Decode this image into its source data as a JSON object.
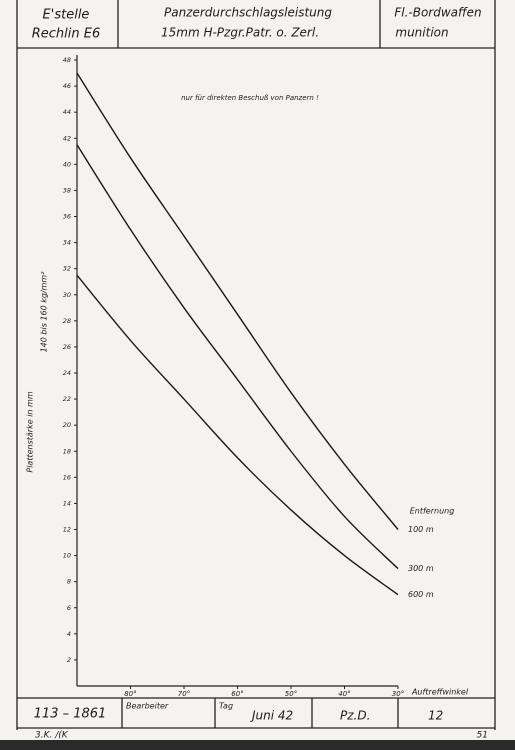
{
  "header": {
    "left": [
      "E'stelle",
      "Rechlin E6"
    ],
    "center": [
      "Panzerdurchschlagsleistung",
      "15mm H-Pzgr.Patr. o. Zerl."
    ],
    "right": [
      "Fl.-Bordwaffen",
      "munition"
    ]
  },
  "footer": {
    "number": "113 – 1861",
    "bearbeiter": "Bearbeiter",
    "tag": "Tag",
    "date": "Juni 42",
    "sign": "Pz.D.",
    "page": "12",
    "stamp": "3.K. /(K",
    "sheet": "51"
  },
  "chart_data": {
    "type": "line",
    "annotation": "nur für direkten Beschuß von Panzern !",
    "y_label": "Plattenstärke in mm",
    "y_label2": "140 bis 160 kg/mm²",
    "x_label": "Auftreffwinkel",
    "legend_title": "Entfernung",
    "x": [
      90,
      80,
      70,
      60,
      50,
      40,
      30
    ],
    "xlim": [
      90,
      30
    ],
    "xticks": [
      {
        "value": 80,
        "label": "80°"
      },
      {
        "value": 70,
        "label": "70°"
      },
      {
        "value": 60,
        "label": "60°"
      },
      {
        "value": 50,
        "label": "50°"
      },
      {
        "value": 40,
        "label": "40°"
      },
      {
        "value": 30,
        "label": "30°"
      }
    ],
    "ylim": [
      0,
      48
    ],
    "yticks": [
      2,
      4,
      6,
      8,
      10,
      12,
      14,
      16,
      18,
      20,
      22,
      24,
      26,
      28,
      30,
      32,
      34,
      36,
      38,
      40,
      42,
      44,
      46,
      48
    ],
    "series": [
      {
        "name": "100 m",
        "color": "#1a1a1a",
        "values": [
          47,
          40.5,
          34.5,
          28.5,
          22.5,
          17,
          12
        ]
      },
      {
        "name": "300 m",
        "color": "#1a1a1a",
        "values": [
          41.5,
          35,
          29,
          23.5,
          18,
          13,
          9
        ]
      },
      {
        "name": "600 m",
        "color": "#1a1a1a",
        "values": [
          31.5,
          26.5,
          22,
          17.5,
          13.5,
          10,
          7
        ]
      }
    ]
  }
}
